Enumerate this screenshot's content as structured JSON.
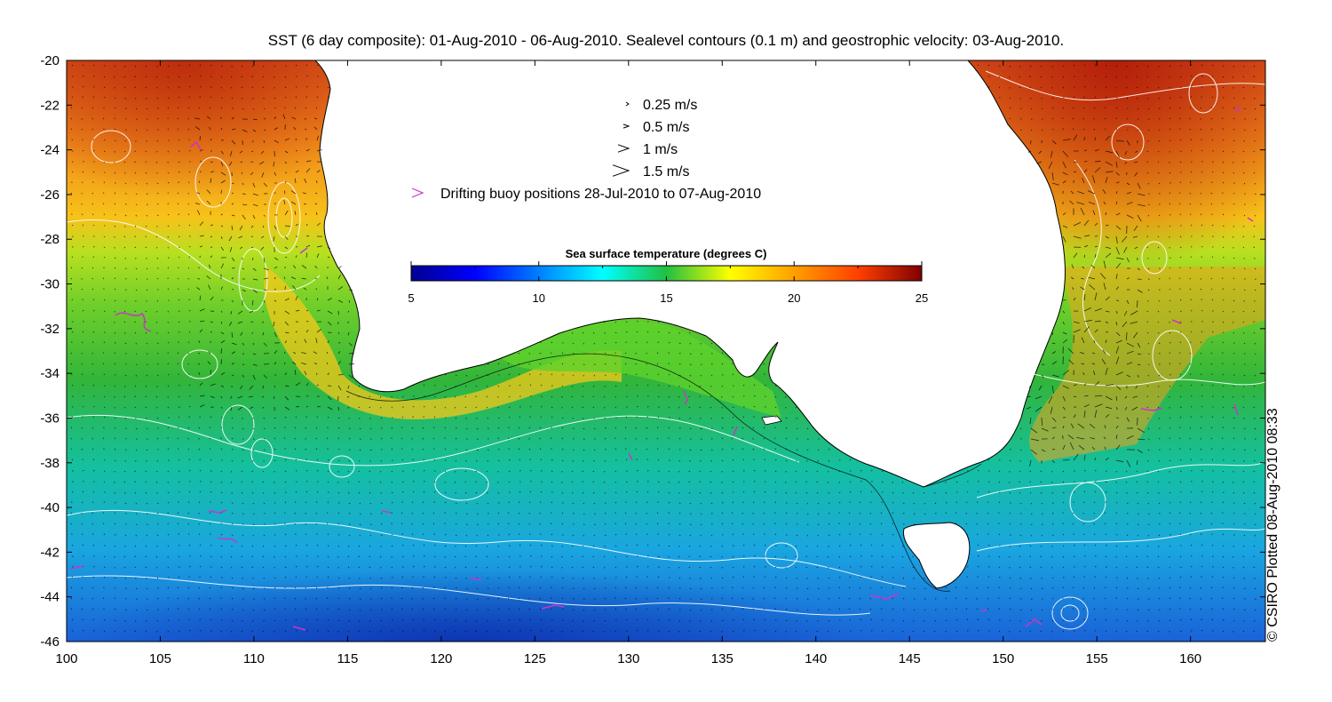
{
  "title": "SST (6 day composite): 01-Aug-2010 - 06-Aug-2010. Sealevel contours (0.1 m) and geostrophic velocity: 03-Aug-2010.",
  "credit": "© CSIRO Plotted 08-Aug-2010 08:33",
  "axes": {
    "x_ticks": [
      "100",
      "105",
      "110",
      "115",
      "120",
      "125",
      "130",
      "135",
      "140",
      "145",
      "150",
      "155",
      "160"
    ],
    "y_ticks": [
      "-20",
      "-22",
      "-24",
      "-26",
      "-28",
      "-30",
      "-32",
      "-34",
      "-36",
      "-38",
      "-40",
      "-42",
      "-44",
      "-46"
    ],
    "lon_range": [
      100,
      164
    ],
    "lat_range": [
      -46,
      -20
    ]
  },
  "velocity_legend": [
    {
      "label": "0.25 m/s",
      "speed": 0.25
    },
    {
      "label": "0.5 m/s",
      "speed": 0.5
    },
    {
      "label": "1 m/s",
      "speed": 1
    },
    {
      "label": "1.5 m/s",
      "speed": 1.5
    }
  ],
  "buoy_legend": {
    "label": "Drifting buoy positions 28-Jul-2010 to 07-Aug-2010",
    "color": "#cc33cc"
  },
  "colorbar": {
    "title": "Sea surface temperature (degrees C)",
    "tick_labels": [
      "5",
      "10",
      "15",
      "20",
      "25"
    ],
    "range": [
      5,
      25
    ]
  },
  "colors": {
    "land": "#ffffff",
    "contour": "#ffffff",
    "arrow": "#000000",
    "buoy": "#cc33cc",
    "coast": "#000000"
  }
}
